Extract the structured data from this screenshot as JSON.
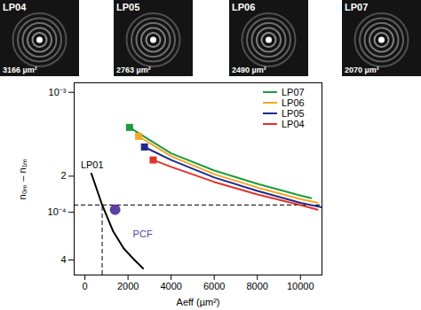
{
  "chart_data": {
    "type": "line",
    "x_label": "Aeff (µm²)",
    "y_label": "n₀ₘ – n₁ₘ",
    "log": "y",
    "legend": "top-right",
    "xlim": [
      -500,
      11000
    ],
    "xticks": [
      0,
      2000,
      4000,
      6000,
      8000,
      10000
    ],
    "ylim": [
      3e-05,
      0.0012
    ],
    "yticks": [
      {
        "value": 0.001,
        "label": "10⁻³"
      },
      {
        "value": 0.0002,
        "label": "2"
      },
      {
        "value": 0.0001,
        "label": "10⁻⁴"
      },
      {
        "value": 4e-05,
        "label": "4"
      }
    ],
    "series": [
      {
        "name": "LP07",
        "color": "#1e9b3c",
        "marker": "square",
        "x": [
          2070,
          4000,
          6000,
          8000,
          10000,
          10500
        ],
        "values": [
          0.00051,
          0.00031,
          0.000223,
          0.000173,
          0.000138,
          0.000131
        ],
        "highlight": {
          "x": 2070,
          "y": 0.00051
        }
      },
      {
        "name": "LP06",
        "color": "#f5a623",
        "marker": "square",
        "x": [
          2490,
          4000,
          6000,
          8000,
          10000,
          10800
        ],
        "values": [
          0.00043,
          0.000293,
          0.000208,
          0.000161,
          0.000129,
          0.00012
        ],
        "highlight": {
          "x": 2490,
          "y": 0.00043
        }
      },
      {
        "name": "LP05",
        "color": "#1f2a8c",
        "marker": "square",
        "x": [
          2763,
          4000,
          6000,
          8000,
          10000,
          11000
        ],
        "values": [
          0.00035,
          0.000273,
          0.000195,
          0.000151,
          0.00012,
          0.00011
        ],
        "highlight": {
          "x": 2763,
          "y": 0.00035
        }
      },
      {
        "name": "LP04",
        "color": "#e0332a",
        "marker": "square",
        "x": [
          3166,
          4000,
          6000,
          8000,
          10000,
          10800
        ],
        "values": [
          0.000273,
          0.000239,
          0.000179,
          0.000141,
          0.000115,
          0.000105
        ],
        "highlight": {
          "x": 3166,
          "y": 0.000273
        }
      },
      {
        "name": "LP01",
        "color": "#000000",
        "x": [
          300,
          800,
          1300,
          1800,
          2300,
          2700
        ],
        "values": [
          0.00021,
          0.000115,
          7e-05,
          5e-05,
          4e-05,
          3.4e-05
        ]
      }
    ],
    "points": [
      {
        "name": "PCF",
        "x": 1400,
        "y": 0.000105,
        "color": "#5b3fa3"
      }
    ],
    "reference_lines": {
      "x": 800,
      "y": 0.000115
    },
    "images": [
      {
        "mode": "LP04",
        "area_label": "3166 µm²"
      },
      {
        "mode": "LP05",
        "area_label": "2763 µm²"
      },
      {
        "mode": "LP06",
        "area_label": "2490 µm²"
      },
      {
        "mode": "LP07",
        "area_label": "2070 µm²"
      }
    ]
  }
}
